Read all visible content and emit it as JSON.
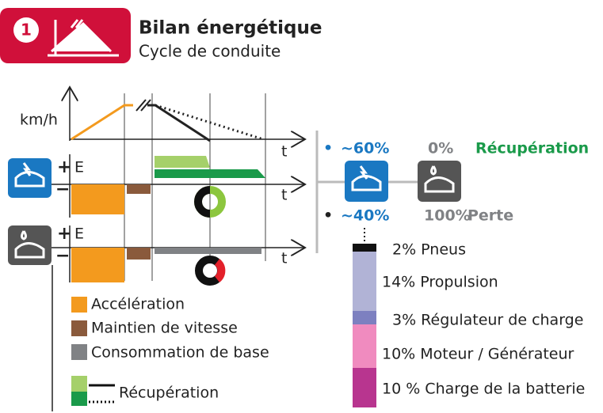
{
  "header": {
    "badge": "1",
    "title": "Bilan énergétique",
    "subtitle": "Cycle de conduite"
  },
  "speed_chart": {
    "y_label": "km/h",
    "x_label": "t"
  },
  "energy_charts": [
    {
      "plus": "+",
      "minus": "−",
      "y_label": "E",
      "x_label": "t"
    },
    {
      "plus": "+",
      "minus": "−",
      "y_label": "E",
      "x_label": "t"
    }
  ],
  "legend": [
    "Accélération",
    "Maintien de vitesse",
    "Consommation de base",
    "Récupération"
  ],
  "comparison": {
    "electric_bullet": "•",
    "electric_share": "~60%",
    "thermal_share": "0%",
    "recovery_label": "Récupération",
    "electric_bullet_2": "•",
    "electric_loss": "~40%",
    "thermal_loss": "100%",
    "loss_label": "Perte"
  },
  "breakdown": [
    "2% Pneus",
    "14% Propulsion",
    "3% Régulateur de charge",
    "10% Moteur / Générateur",
    "10 % Charge de la batterie"
  ]
}
